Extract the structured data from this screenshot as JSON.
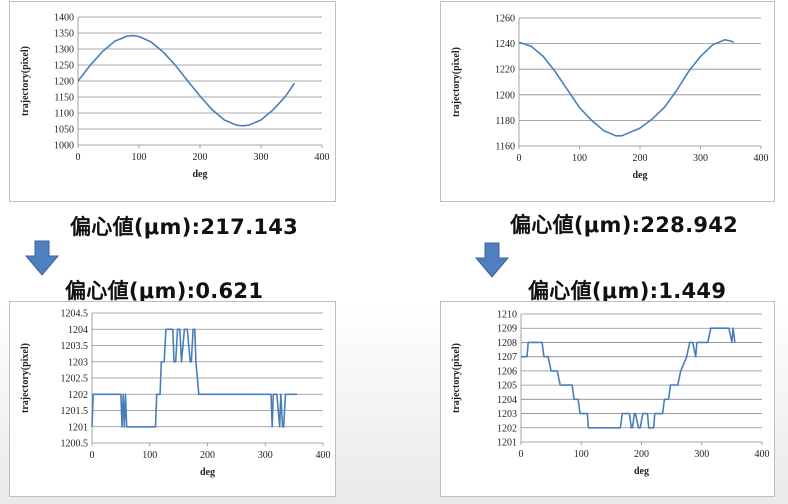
{
  "captions": {
    "tl": "偏心値(μm):217.143",
    "tr": "偏心値(μm):228.942",
    "bl": "偏心値(μm):0.621",
    "br": "偏心値(μm):1.449"
  },
  "colors": {
    "line": "#4a7ebb",
    "grid": "#8c8c8c",
    "arrow": "#4f7fbf"
  },
  "chart_data": [
    {
      "id": "tl",
      "type": "line",
      "xlabel": "deg",
      "ylabel": "trajectory(pixel)",
      "xlim": [
        0,
        400
      ],
      "ylim": [
        1000,
        1400
      ],
      "xticks": [
        0,
        100,
        200,
        300,
        400
      ],
      "yticks": [
        1000,
        1050,
        1100,
        1150,
        1200,
        1250,
        1300,
        1350,
        1400
      ],
      "grid": true,
      "x": [
        0,
        20,
        40,
        60,
        80,
        90,
        100,
        120,
        140,
        160,
        180,
        200,
        220,
        240,
        260,
        270,
        280,
        300,
        320,
        340,
        355
      ],
      "y": [
        1200,
        1249,
        1292,
        1324,
        1340,
        1342,
        1339,
        1322,
        1290,
        1248,
        1200,
        1153,
        1110,
        1078,
        1062,
        1060,
        1062,
        1078,
        1110,
        1152,
        1193
      ]
    },
    {
      "id": "tr",
      "type": "line",
      "xlabel": "deg",
      "ylabel": "trajectory(pixel)",
      "xlim": [
        0,
        400
      ],
      "ylim": [
        1160,
        1260
      ],
      "xticks": [
        0,
        100,
        200,
        300,
        400
      ],
      "yticks": [
        1160,
        1180,
        1200,
        1220,
        1240,
        1260
      ],
      "grid": true,
      "x": [
        0,
        20,
        40,
        60,
        80,
        100,
        120,
        140,
        160,
        170,
        180,
        200,
        220,
        240,
        260,
        280,
        300,
        320,
        340,
        350,
        355
      ],
      "y": [
        1241,
        1238,
        1230,
        1218,
        1204,
        1190,
        1180,
        1172,
        1168,
        1168,
        1170,
        1174,
        1181,
        1190,
        1203,
        1218,
        1230,
        1239,
        1243,
        1242,
        1241
      ]
    },
    {
      "id": "bl",
      "type": "line",
      "xlabel": "deg",
      "ylabel": "trajectory(pixel)",
      "xlim": [
        0,
        400
      ],
      "ylim": [
        1200.5,
        1204.5
      ],
      "xticks": [
        0,
        100,
        200,
        300,
        400
      ],
      "yticks": [
        1200.5,
        1201,
        1201.5,
        1202,
        1202.5,
        1203,
        1203.5,
        1204,
        1204.5
      ],
      "grid": true,
      "x": [
        0,
        2,
        4,
        50,
        52,
        54,
        56,
        58,
        60,
        110,
        112,
        118,
        120,
        125,
        128,
        135,
        140,
        142,
        145,
        148,
        152,
        155,
        160,
        165,
        170,
        172,
        175,
        178,
        180,
        185,
        190,
        310,
        312,
        314,
        316,
        320,
        325,
        327,
        330,
        332,
        335,
        350,
        355
      ],
      "y": [
        1201,
        1202,
        1202,
        1202,
        1201,
        1202,
        1201,
        1202,
        1201,
        1201,
        1202,
        1202,
        1203,
        1203,
        1204,
        1204,
        1204,
        1203,
        1203,
        1204,
        1204,
        1203,
        1204,
        1204,
        1203,
        1203,
        1204,
        1204,
        1203,
        1202,
        1202,
        1202,
        1201,
        1202,
        1202,
        1202,
        1201,
        1202,
        1201,
        1201,
        1202,
        1202,
        1202
      ]
    },
    {
      "id": "br",
      "type": "line",
      "xlabel": "deg",
      "ylabel": "trajectory(pixel)",
      "xlim": [
        0,
        400
      ],
      "ylim": [
        1201,
        1210
      ],
      "xticks": [
        0,
        100,
        200,
        300,
        400
      ],
      "yticks": [
        1201,
        1202,
        1203,
        1204,
        1205,
        1206,
        1207,
        1208,
        1209,
        1210
      ],
      "grid": true,
      "x": [
        0,
        10,
        12,
        35,
        38,
        45,
        50,
        60,
        65,
        85,
        88,
        95,
        98,
        110,
        112,
        125,
        127,
        165,
        168,
        180,
        183,
        185,
        188,
        190,
        195,
        198,
        202,
        210,
        212,
        220,
        222,
        235,
        238,
        245,
        248,
        260,
        265,
        275,
        280,
        285,
        290,
        292,
        300,
        310,
        315,
        330,
        340,
        345,
        350,
        352,
        355
      ],
      "y": [
        1207,
        1207,
        1208,
        1208,
        1207,
        1207,
        1206,
        1206,
        1205,
        1205,
        1204,
        1204,
        1203,
        1203,
        1202,
        1202,
        1202,
        1202,
        1203,
        1203,
        1202,
        1202,
        1203,
        1203,
        1202,
        1202,
        1203,
        1203,
        1202,
        1202,
        1203,
        1203,
        1204,
        1204,
        1205,
        1205,
        1206,
        1207,
        1208,
        1208,
        1207,
        1208,
        1208,
        1208,
        1209,
        1209,
        1209,
        1209,
        1208,
        1209,
        1208
      ]
    }
  ]
}
